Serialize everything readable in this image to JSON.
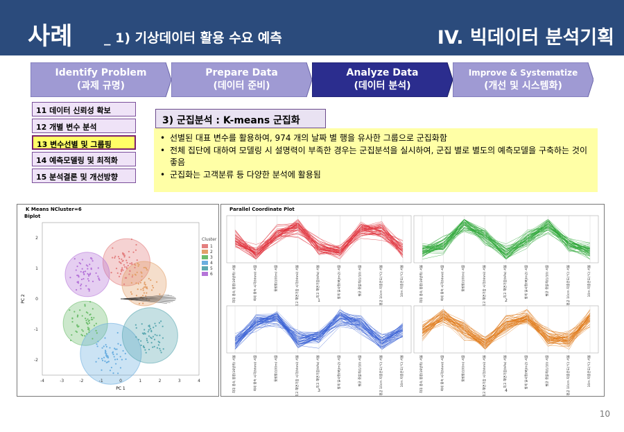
{
  "header": {
    "title": "사례",
    "subtitle": "_ 1) 기상데이터 활용 수요 예측",
    "section": "IV. 빅데이터 분석기획"
  },
  "steps": [
    {
      "title": "Identify Problem",
      "sub": "(과제 규명)",
      "color": "#9f9ad3"
    },
    {
      "title": "Prepare Data",
      "sub": "(데이터 준비)",
      "color": "#9f9ad3"
    },
    {
      "title": "Analyze Data",
      "sub": "(데이터 분석)",
      "color": "#2b2d8e"
    },
    {
      "title": "Improve & Systematize",
      "sub": "(개선 및 시스템화)",
      "color": "#9f9ad3"
    }
  ],
  "menu": [
    "11 데이터 신뢰성 확보",
    "12 개별 변수 분석",
    "13 변수선별 및 그룹핑",
    "14 예측모델링 및 최적화",
    "15 분석결론 및 개선방향"
  ],
  "section_title": "3) 군집분석 : K-means 군집화",
  "bullets": [
    "선별된 대표 변수를 활용하여, 974 개의 날짜 별 행을 유사한 그룹으로 군집화함",
    "전체 집단에 대하여 모델링 시 설명력이 부족한 경우는 군집분석을 실시하여, 군집 별로 별도의 예측모델을 구축하는 것이 좋음",
    "군집화는 고객분류 등 다양한 분석에 활용됨"
  ],
  "left_panel": {
    "title": "K Means NCluster=6",
    "subtitle": "Biplot",
    "legend_title": "Cluster",
    "clusters": [
      {
        "label": "1",
        "color": "#e37f7f"
      },
      {
        "label": "2",
        "color": "#e3a06a"
      },
      {
        "label": "3",
        "color": "#6dbd6d"
      },
      {
        "label": "4",
        "color": "#6aaee0"
      },
      {
        "label": "5",
        "color": "#5aa7b0"
      },
      {
        "label": "6",
        "color": "#b574d8"
      }
    ],
    "x_ticks": [
      "-4",
      "-3",
      "-2",
      "-1",
      "0",
      "1",
      "2",
      "3",
      "4"
    ],
    "y_ticks": [
      "2",
      "1",
      "0",
      "-1",
      "-2"
    ],
    "xlabel": "PC 1",
    "ylabel": "PC 2"
  },
  "right_panel": {
    "title": "Parallel Coordinate Plot",
    "axis_labels": [
      "최대 풍속 풍향(16방위) 서울",
      "최대 풍속 시각(hhmi) 서울",
      "풍정합(100m) 서울",
      "최고 해면기압 시각(hhmi) 서울",
      "최고 해면기압(hPa) 서울",
      "합계 일사량(MJ/m2) 서울",
      "평균 증발계(1/10) 서울",
      "평균 10cm 지중온도(℃) 서울",
      "10m 지중온도(℃) 서울"
    ],
    "plots": [
      {
        "label": "1",
        "color": "#e0323c"
      },
      {
        "label": "2",
        "color": "#2fa83a"
      },
      {
        "label": "3",
        "color": "#3a62d4"
      },
      {
        "label": "4",
        "color": "#e07a1a"
      }
    ]
  },
  "page_number": "10"
}
